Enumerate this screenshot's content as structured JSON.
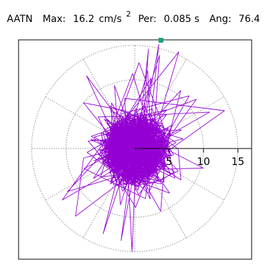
{
  "header": {
    "station": "AATN",
    "max_label": "Max:",
    "max_value": "16.2",
    "max_unit": "cm/s",
    "max_unit_power": "2",
    "per_label": "Per:",
    "per_value": "0.085 s",
    "ang_label": "Ang:",
    "ang_value": "76.4"
  },
  "chart_data": {
    "type": "scatter",
    "title": "AATN   Max:  16.2 cm/s²  Per:  0.085 s   Ang:  76.4",
    "xlabel": "",
    "ylabel": "",
    "polar": true,
    "radius_max": 17.5,
    "ring_radii": [
      5,
      10,
      15
    ],
    "spoke_angles_deg": [
      0,
      30,
      60,
      90,
      120,
      150,
      180,
      210,
      240,
      270,
      300,
      330
    ],
    "tick_labels": [
      "5",
      "10",
      "15"
    ],
    "tick_values": [
      5,
      10,
      15
    ],
    "grid": true,
    "trace_color": "#9400d3",
    "marker_color": "#1a9f80",
    "max_point": {
      "magnitude": 16.2,
      "angle_deg": 76.4
    }
  }
}
